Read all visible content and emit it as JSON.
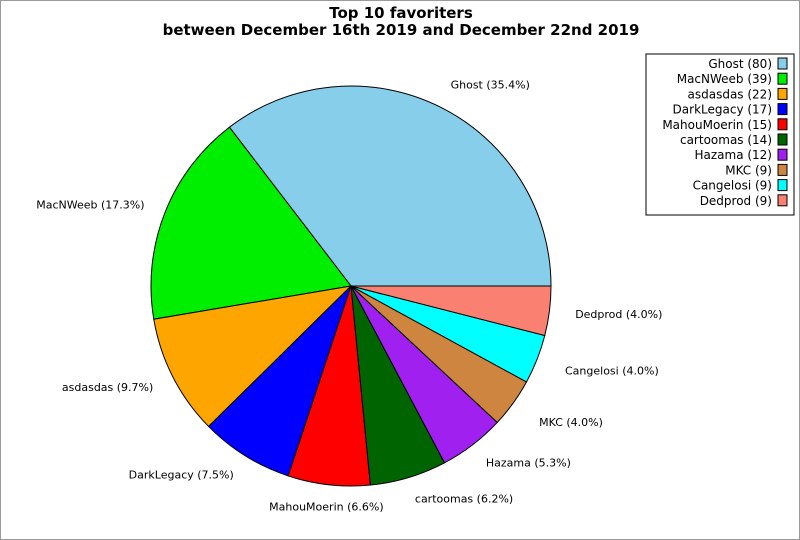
{
  "chart_data": {
    "type": "pie",
    "title": "Top 10 favoriters",
    "subtitle": "between December 16th 2019 and December 22nd 2019",
    "legend_position": "top-right",
    "slices": [
      {
        "name": "Ghost",
        "value": 80,
        "color": "#87ceeb",
        "label": "Ghost (35.4%)",
        "legend": "Ghost (80)"
      },
      {
        "name": "MacNWeeb",
        "value": 39,
        "color": "#00ee00",
        "label": "MacNWeeb (17.3%)",
        "legend": "MacNWeeb (39)"
      },
      {
        "name": "asdasdas",
        "value": 22,
        "color": "#ffa500",
        "label": "asdasdas (9.7%)",
        "legend": "asdasdas (22)"
      },
      {
        "name": "DarkLegacy",
        "value": 17,
        "color": "#0000ff",
        "label": "DarkLegacy (7.5%)",
        "legend": "DarkLegacy (17)"
      },
      {
        "name": "MahouMoerin",
        "value": 15,
        "color": "#ff0000",
        "label": "MahouMoerin (6.6%)",
        "legend": "MahouMoerin (15)"
      },
      {
        "name": "cartoomas",
        "value": 14,
        "color": "#006400",
        "label": "cartoomas (6.2%)",
        "legend": "cartoomas (14)"
      },
      {
        "name": "Hazama",
        "value": 12,
        "color": "#a020f0",
        "label": "Hazama (5.3%)",
        "legend": "Hazama (12)"
      },
      {
        "name": "MKC",
        "value": 9,
        "color": "#cd853f",
        "label": "MKC (4.0%)",
        "legend": "MKC (9)"
      },
      {
        "name": "Cangelosi",
        "value": 9,
        "color": "#00ffff",
        "label": "Cangelosi (4.0%)",
        "legend": "Cangelosi (9)"
      },
      {
        "name": "Dedprod",
        "value": 9,
        "color": "#fa8072",
        "label": "Dedprod (4.0%)",
        "legend": "Dedprod (9)"
      }
    ]
  }
}
